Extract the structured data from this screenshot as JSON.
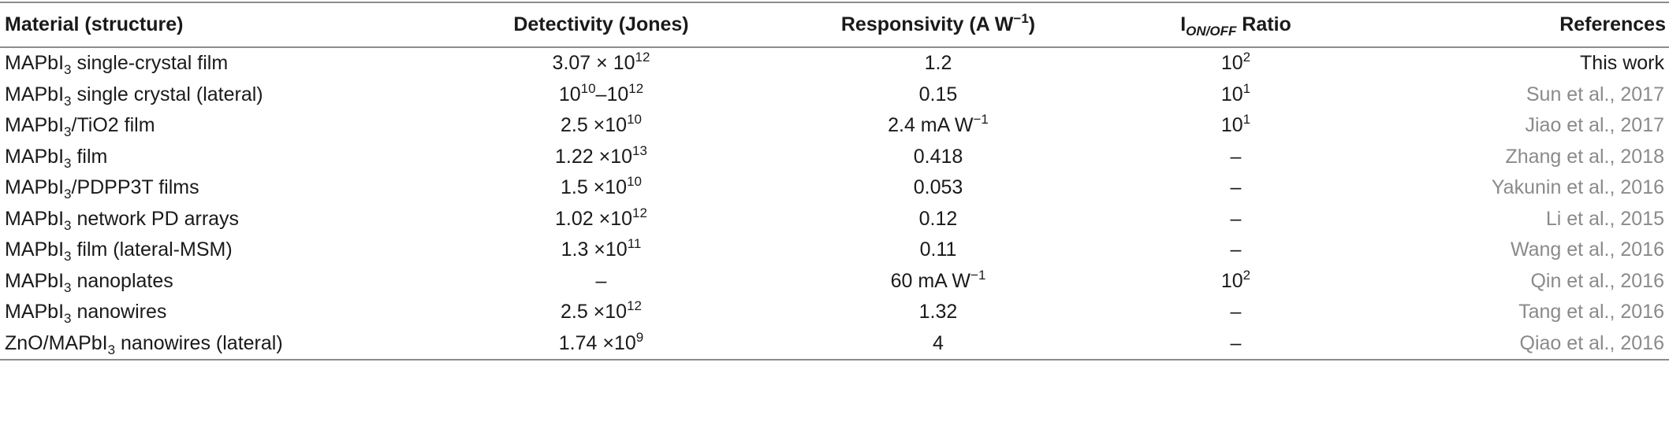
{
  "table": {
    "headers": {
      "material": "Material (structure)",
      "detectivity": "Detectivity (Jones)",
      "responsivity_prefix": "Responsivity (A W",
      "responsivity_sup": "−1",
      "responsivity_suffix": ")",
      "ratio_prefix": "I",
      "ratio_sub": "ON/OFF",
      "ratio_suffix": " Ratio",
      "references": "References"
    },
    "rows": [
      {
        "mat_pre": "MAPbI",
        "mat_sub": "3",
        "mat_post": " single-crystal film",
        "det_base": "3.07 × 10",
        "det_exp": "12",
        "det_mid": "",
        "det_base2": "",
        "det_exp2": "",
        "resp": "1.2",
        "resp_sup": "",
        "ratio_base": "10",
        "ratio_exp": "2",
        "ref": "This work"
      },
      {
        "mat_pre": "MAPbI",
        "mat_sub": "3",
        "mat_post": " single crystal (lateral)",
        "det_base": "10",
        "det_exp": "10",
        "det_mid": "–",
        "det_base2": "10",
        "det_exp2": "12",
        "resp": "0.15",
        "resp_sup": "",
        "ratio_base": "10",
        "ratio_exp": "1",
        "ref": "Sun et al., 2017"
      },
      {
        "mat_pre": "MAPbI",
        "mat_sub": "3",
        "mat_post": "/TiO2 film",
        "det_base": "2.5 ×10",
        "det_exp": "10",
        "det_mid": "",
        "det_base2": "",
        "det_exp2": "",
        "resp": "2.4 mA W",
        "resp_sup": "−1",
        "ratio_base": "10",
        "ratio_exp": "1",
        "ref": "Jiao et al., 2017"
      },
      {
        "mat_pre": "MAPbI",
        "mat_sub": "3",
        "mat_post": " film",
        "det_base": "1.22 ×10",
        "det_exp": "13",
        "det_mid": "",
        "det_base2": "",
        "det_exp2": "",
        "resp": "0.418",
        "resp_sup": "",
        "ratio_base": "–",
        "ratio_exp": "",
        "ref": "Zhang et al., 2018"
      },
      {
        "mat_pre": "MAPbI",
        "mat_sub": "3",
        "mat_post": "/PDPP3T films",
        "det_base": "1.5 ×10",
        "det_exp": "10",
        "det_mid": "",
        "det_base2": "",
        "det_exp2": "",
        "resp": "0.053",
        "resp_sup": "",
        "ratio_base": "–",
        "ratio_exp": "",
        "ref": "Yakunin et al., 2016"
      },
      {
        "mat_pre": "MAPbI",
        "mat_sub": "3",
        "mat_post": " network PD arrays",
        "det_base": "1.02 ×10",
        "det_exp": "12",
        "det_mid": "",
        "det_base2": "",
        "det_exp2": "",
        "resp": "0.12",
        "resp_sup": "",
        "ratio_base": "–",
        "ratio_exp": "",
        "ref": "Li et al., 2015"
      },
      {
        "mat_pre": "MAPbI",
        "mat_sub": "3",
        "mat_post": " film (lateral-MSM)",
        "det_base": "1.3 ×10",
        "det_exp": "11",
        "det_mid": "",
        "det_base2": "",
        "det_exp2": "",
        "resp": "0.11",
        "resp_sup": "",
        "ratio_base": "–",
        "ratio_exp": "",
        "ref": "Wang et al., 2016"
      },
      {
        "mat_pre": "MAPbI",
        "mat_sub": "3",
        "mat_post": " nanoplates",
        "det_base": "–",
        "det_exp": "",
        "det_mid": "",
        "det_base2": "",
        "det_exp2": "",
        "resp": "60 mA W",
        "resp_sup": "−1",
        "ratio_base": "10",
        "ratio_exp": "2",
        "ref": "Qin et al., 2016"
      },
      {
        "mat_pre": "MAPbI",
        "mat_sub": "3",
        "mat_post": " nanowires",
        "det_base": "2.5 ×10",
        "det_exp": "12",
        "det_mid": "",
        "det_base2": "",
        "det_exp2": "",
        "resp": "1.32",
        "resp_sup": "",
        "ratio_base": "–",
        "ratio_exp": "",
        "ref": "Tang et al., 2016"
      },
      {
        "mat_pre": "ZnO/MAPbI",
        "mat_sub": "3",
        "mat_post": " nanowires (lateral)",
        "det_base": "1.74 ×10",
        "det_exp": "9",
        "det_mid": "",
        "det_base2": "",
        "det_exp2": "",
        "resp": "4",
        "resp_sup": "",
        "ratio_base": "–",
        "ratio_exp": "",
        "ref": "Qiao et al., 2016"
      }
    ]
  }
}
